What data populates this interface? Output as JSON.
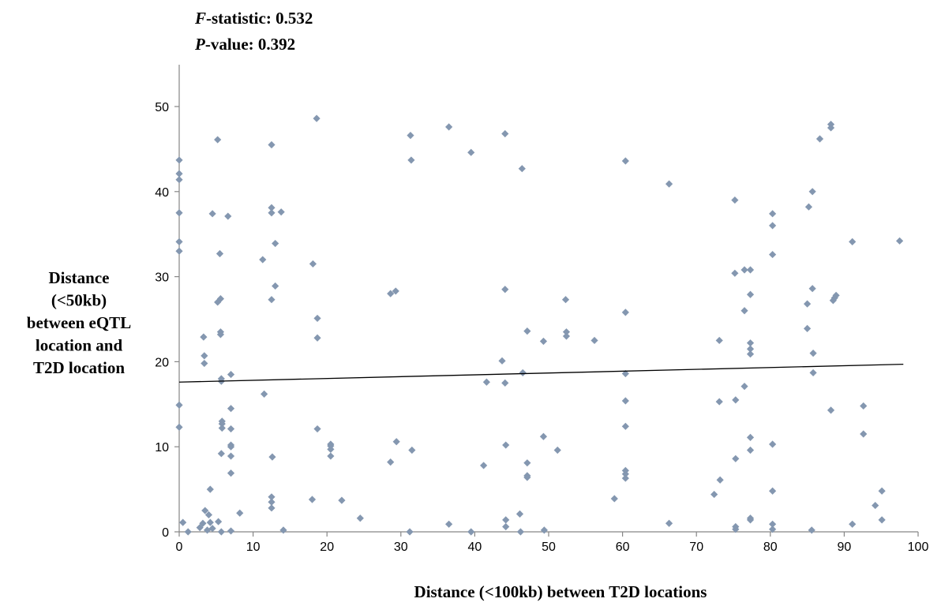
{
  "stats": {
    "f_label": "F",
    "f_text": "-statistic: 0.532",
    "p_label": "P",
    "p_text": "-value: 0.392"
  },
  "colors": {
    "marker": "#8497b0",
    "trendline": "#000000",
    "axis": "#868686",
    "text": "#000000"
  },
  "chart_data": {
    "type": "scatter",
    "xlabel": "Distance (<100kb) between T2D locations",
    "ylabel_lines": [
      "Distance",
      "(<50kb)",
      "between eQTL",
      "location and",
      "T2D location"
    ],
    "xlim": [
      0,
      100
    ],
    "ylim": [
      0,
      55
    ],
    "xticks": [
      0,
      10,
      20,
      30,
      40,
      50,
      60,
      70,
      80,
      90,
      100
    ],
    "yticks": [
      0,
      10,
      20,
      30,
      40,
      50
    ],
    "grid": false,
    "legend": "none",
    "trendline": {
      "x": [
        0,
        98
      ],
      "y": [
        17.6,
        19.7
      ]
    },
    "points": [
      [
        0,
        43.7
      ],
      [
        0,
        42.1
      ],
      [
        0,
        41.4
      ],
      [
        0,
        37.5
      ],
      [
        0,
        34.1
      ],
      [
        0,
        33.0
      ],
      [
        0,
        14.9
      ],
      [
        0,
        12.3
      ],
      [
        0.5,
        1.1
      ],
      [
        1.2,
        0.0
      ],
      [
        2.8,
        0.5
      ],
      [
        3.2,
        1.0
      ],
      [
        3.5,
        2.5
      ],
      [
        3.8,
        0.2
      ],
      [
        4.0,
        2.0
      ],
      [
        4.2,
        1.1
      ],
      [
        4.5,
        0.4
      ],
      [
        5.3,
        1.2
      ],
      [
        5.7,
        0.0
      ],
      [
        3.3,
        22.9
      ],
      [
        3.4,
        20.7
      ],
      [
        3.4,
        19.8
      ],
      [
        4.2,
        5.0
      ],
      [
        4.5,
        37.4
      ],
      [
        5.2,
        46.1
      ],
      [
        5.2,
        27.0
      ],
      [
        5.6,
        27.4
      ],
      [
        5.5,
        32.7
      ],
      [
        5.6,
        23.5
      ],
      [
        5.6,
        23.2
      ],
      [
        5.7,
        18.0
      ],
      [
        5.7,
        17.7
      ],
      [
        5.8,
        13.0
      ],
      [
        5.8,
        12.7
      ],
      [
        5.8,
        12.2
      ],
      [
        5.7,
        9.2
      ],
      [
        6.6,
        37.1
      ],
      [
        7.0,
        18.5
      ],
      [
        7.0,
        14.5
      ],
      [
        7.0,
        12.1
      ],
      [
        7.0,
        10.2
      ],
      [
        7.0,
        10.0
      ],
      [
        7.0,
        8.9
      ],
      [
        7.0,
        6.9
      ],
      [
        7.0,
        0.1
      ],
      [
        8.2,
        2.2
      ],
      [
        11.3,
        32.0
      ],
      [
        11.5,
        16.2
      ],
      [
        12.5,
        45.5
      ],
      [
        12.5,
        38.1
      ],
      [
        12.5,
        37.5
      ],
      [
        12.5,
        27.3
      ],
      [
        12.6,
        8.8
      ],
      [
        12.5,
        4.1
      ],
      [
        12.5,
        3.5
      ],
      [
        12.5,
        2.8
      ],
      [
        13.0,
        33.9
      ],
      [
        13.0,
        28.9
      ],
      [
        13.8,
        37.6
      ],
      [
        14.1,
        0.2
      ],
      [
        18.0,
        3.8
      ],
      [
        18.1,
        31.5
      ],
      [
        18.6,
        48.6
      ],
      [
        18.7,
        25.1
      ],
      [
        18.7,
        22.8
      ],
      [
        18.7,
        12.1
      ],
      [
        20.5,
        10.1
      ],
      [
        20.5,
        9.7
      ],
      [
        20.5,
        8.9
      ],
      [
        20.5,
        10.3
      ],
      [
        22.0,
        3.7
      ],
      [
        24.5,
        1.6
      ],
      [
        28.6,
        8.2
      ],
      [
        28.6,
        28.0
      ],
      [
        29.3,
        28.3
      ],
      [
        29.4,
        10.6
      ],
      [
        31.3,
        46.6
      ],
      [
        31.4,
        43.7
      ],
      [
        31.5,
        9.6
      ],
      [
        31.2,
        0.0
      ],
      [
        36.5,
        47.6
      ],
      [
        36.5,
        0.9
      ],
      [
        39.5,
        44.6
      ],
      [
        39.5,
        0.0
      ],
      [
        41.2,
        7.8
      ],
      [
        41.6,
        17.6
      ],
      [
        43.7,
        20.1
      ],
      [
        44.1,
        46.8
      ],
      [
        44.1,
        28.5
      ],
      [
        44.1,
        17.5
      ],
      [
        44.2,
        10.2
      ],
      [
        44.2,
        1.4
      ],
      [
        44.2,
        0.6
      ],
      [
        46.1,
        2.1
      ],
      [
        46.2,
        0.0
      ],
      [
        46.4,
        42.7
      ],
      [
        46.5,
        18.7
      ],
      [
        47.1,
        23.6
      ],
      [
        47.1,
        8.1
      ],
      [
        47.1,
        6.6
      ],
      [
        47.1,
        6.4
      ],
      [
        49.3,
        22.4
      ],
      [
        49.3,
        11.2
      ],
      [
        49.4,
        0.2
      ],
      [
        51.2,
        9.6
      ],
      [
        52.3,
        27.3
      ],
      [
        52.4,
        23.5
      ],
      [
        52.4,
        23.0
      ],
      [
        56.2,
        22.5
      ],
      [
        58.9,
        3.9
      ],
      [
        60.4,
        43.6
      ],
      [
        60.4,
        25.8
      ],
      [
        60.4,
        18.6
      ],
      [
        60.4,
        15.4
      ],
      [
        60.4,
        12.4
      ],
      [
        60.4,
        7.2
      ],
      [
        60.4,
        6.8
      ],
      [
        60.4,
        6.3
      ],
      [
        66.3,
        40.9
      ],
      [
        66.3,
        1.0
      ],
      [
        72.4,
        4.4
      ],
      [
        73.1,
        22.5
      ],
      [
        73.1,
        15.3
      ],
      [
        73.2,
        6.1
      ],
      [
        75.2,
        39.0
      ],
      [
        75.2,
        30.4
      ],
      [
        75.3,
        15.5
      ],
      [
        75.3,
        8.6
      ],
      [
        75.3,
        0.6
      ],
      [
        75.3,
        0.3
      ],
      [
        76.5,
        30.8
      ],
      [
        76.5,
        26.0
      ],
      [
        76.5,
        17.1
      ],
      [
        77.3,
        30.8
      ],
      [
        77.3,
        27.9
      ],
      [
        77.3,
        22.2
      ],
      [
        77.3,
        21.5
      ],
      [
        77.3,
        20.9
      ],
      [
        77.3,
        11.1
      ],
      [
        77.3,
        9.6
      ],
      [
        77.3,
        1.6
      ],
      [
        77.3,
        1.4
      ],
      [
        80.3,
        37.4
      ],
      [
        80.3,
        36.0
      ],
      [
        80.3,
        32.6
      ],
      [
        80.3,
        10.3
      ],
      [
        80.3,
        4.8
      ],
      [
        80.3,
        0.9
      ],
      [
        80.3,
        0.3
      ],
      [
        85.0,
        26.8
      ],
      [
        85.0,
        23.9
      ],
      [
        85.2,
        38.2
      ],
      [
        85.7,
        40.0
      ],
      [
        85.7,
        28.6
      ],
      [
        85.8,
        21.0
      ],
      [
        85.8,
        18.7
      ],
      [
        85.6,
        0.2
      ],
      [
        86.7,
        46.2
      ],
      [
        88.2,
        47.9
      ],
      [
        88.2,
        47.5
      ],
      [
        88.2,
        14.3
      ],
      [
        88.5,
        27.2
      ],
      [
        88.7,
        27.5
      ],
      [
        88.9,
        27.8
      ],
      [
        91.1,
        34.1
      ],
      [
        91.1,
        0.9
      ],
      [
        92.6,
        14.8
      ],
      [
        92.6,
        11.5
      ],
      [
        94.2,
        3.1
      ],
      [
        95.1,
        4.8
      ],
      [
        95.1,
        1.4
      ],
      [
        97.5,
        34.2
      ]
    ]
  }
}
